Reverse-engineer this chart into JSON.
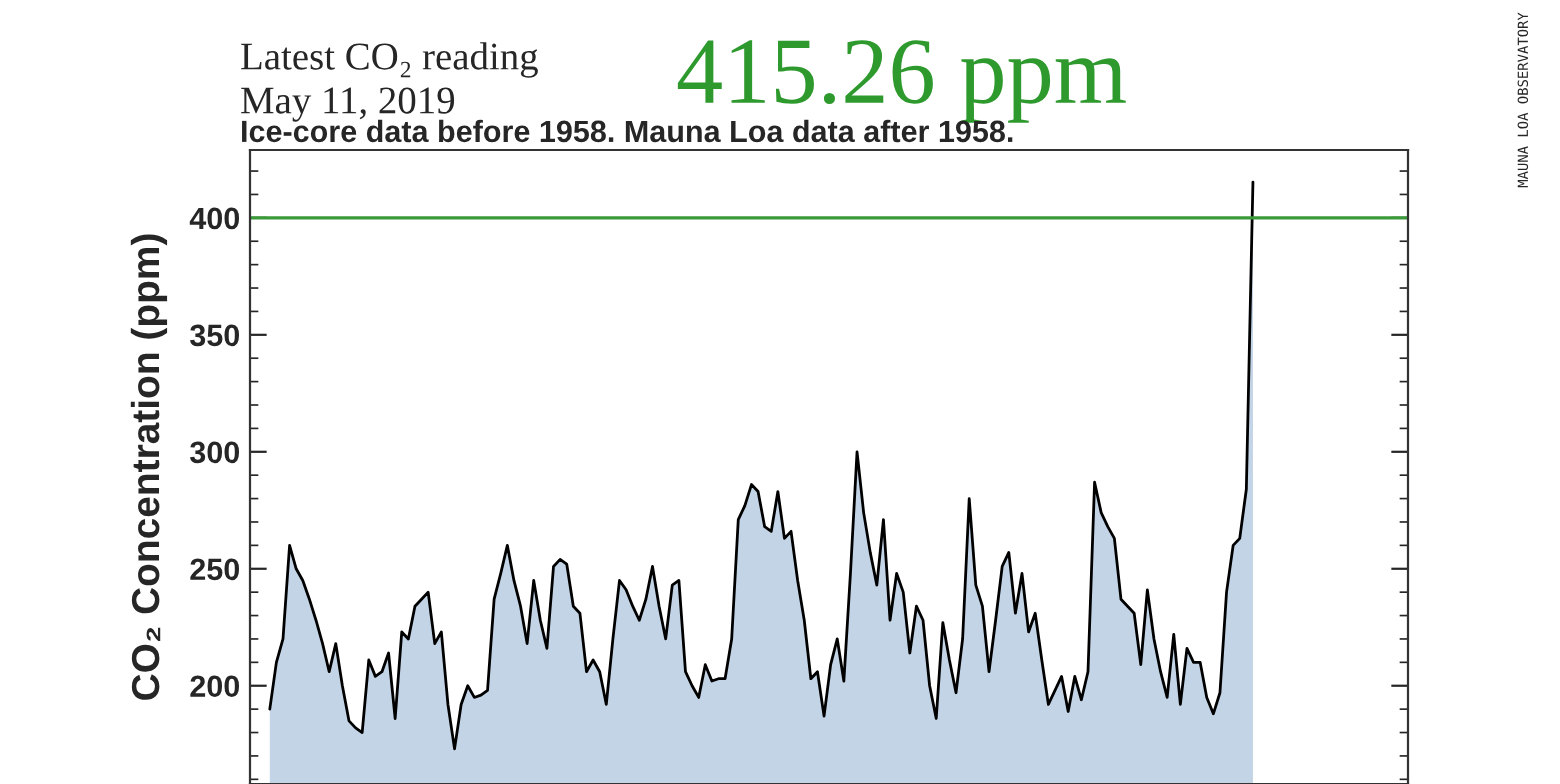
{
  "chart_data": {
    "type": "area",
    "title": "Latest CO₂ reading",
    "subtitle": "May 11, 2019",
    "annotations": [
      "415.26 ppm",
      "Ice-core data before 1958. Mauna Loa data after 1958.",
      "MAUNA LOA OBSERVATORY"
    ],
    "ylabel": "CO₂ Concentration (ppm)",
    "categories": [
      null,
      null,
      null,
      null,
      null,
      null,
      null,
      null,
      null,
      null,
      null,
      null,
      null,
      null,
      null,
      null,
      null,
      null,
      null,
      null,
      null,
      null,
      null,
      null,
      null,
      null,
      null,
      null,
      null,
      null,
      null,
      null,
      null,
      null,
      null,
      null,
      null,
      null,
      null,
      null,
      null,
      null,
      null,
      null,
      null,
      null,
      null,
      null,
      null,
      null,
      null,
      null,
      null,
      null,
      null,
      null,
      null,
      null,
      null,
      null,
      null,
      null,
      null,
      null,
      null,
      null,
      null,
      null,
      null,
      null,
      null,
      null,
      null,
      null,
      null,
      null,
      null,
      null,
      null,
      null,
      null,
      null,
      null,
      null,
      null,
      null,
      null,
      null,
      null,
      null,
      null,
      null,
      null,
      null,
      null,
      null,
      null,
      null,
      null,
      null,
      null,
      null,
      null,
      null,
      null,
      null,
      null,
      null,
      null,
      null,
      null,
      null,
      null,
      null,
      null,
      null,
      null,
      null,
      null,
      null,
      null,
      null,
      null,
      null,
      null,
      null,
      null,
      null,
      null,
      null,
      null,
      null,
      null,
      null,
      null,
      null,
      null,
      null,
      null,
      null,
      null,
      null,
      null,
      null,
      null,
      null,
      null,
      null,
      null,
      null
    ],
    "series": [
      {
        "color": "#c3d4e6",
        "values": [
          190,
          210,
          220,
          260,
          250,
          245,
          237,
          228,
          218,
          206,
          218,
          200,
          185,
          182,
          180,
          211,
          204,
          206,
          214,
          186,
          223,
          220,
          234,
          237,
          240,
          218,
          223,
          192,
          173,
          192,
          200,
          195,
          196,
          198,
          237,
          248,
          260,
          245,
          234,
          218,
          245,
          228,
          216,
          251,
          254,
          252,
          234,
          231,
          206,
          211,
          206,
          192,
          220,
          245,
          241,
          234,
          228,
          237,
          251,
          234,
          220,
          243,
          245,
          206,
          200,
          195,
          209,
          202,
          203,
          203,
          220,
          271,
          277,
          286,
          283,
          268,
          266,
          283,
          263,
          266,
          245,
          228,
          203,
          206,
          187,
          209,
          220,
          202,
          248,
          300,
          274,
          257,
          243,
          271,
          228,
          248,
          240,
          214,
          234,
          228,
          200,
          186,
          227,
          211,
          197,
          220,
          280,
          243,
          234,
          206,
          228,
          251,
          257,
          231,
          248,
          223,
          231,
          211,
          192,
          198,
          204,
          189,
          204,
          194,
          206,
          287,
          274,
          268,
          263,
          237,
          234,
          231,
          209,
          241,
          220,
          206,
          195,
          222,
          192,
          216,
          210,
          210,
          195,
          188,
          197,
          240,
          260,
          263,
          284,
          415.26
        ]
      }
    ],
    "ylim": [
      158,
      429
    ],
    "yticks": [
      200,
      250,
      300,
      350,
      400
    ],
    "ref_lines": [
      {
        "axis": "y",
        "value": 400,
        "color": "#3a9a3a"
      }
    ],
    "grid": false
  }
}
